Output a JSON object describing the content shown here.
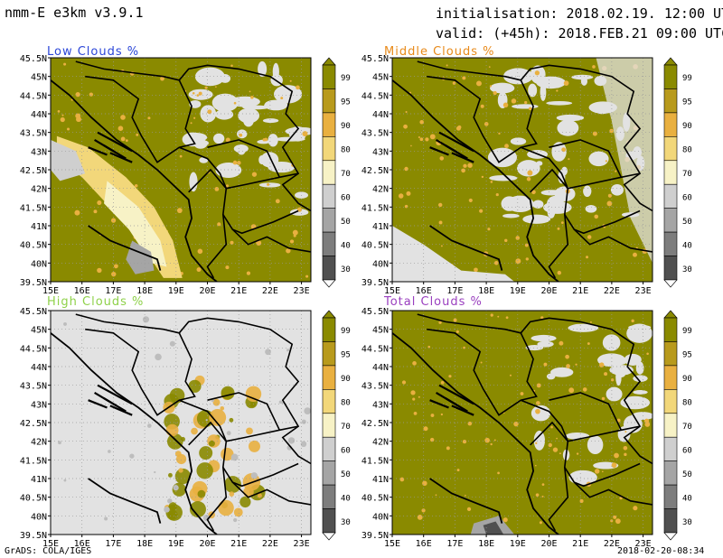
{
  "header": {
    "model": "nmm-E e3km v3.9.1",
    "init": "initialisation: 2018.02.19. 12:00 UTC",
    "valid": "valid: (+45h): 2018.FEB.21 09:00 UTC"
  },
  "footer": {
    "left": "GrADS: COLA/IGES",
    "right": "2018-02-20-08:34"
  },
  "colors": {
    "olive": "#8a8a00",
    "light_gray": "#e2e2e2",
    "orange": "#e9b040"
  },
  "axes": {
    "lat_ticks": [
      "45.5N",
      "45N",
      "44.5N",
      "44N",
      "43.5N",
      "43N",
      "42.5N",
      "42N",
      "41.5N",
      "41N",
      "40.5N",
      "40N",
      "39.5N"
    ],
    "lon_ticks": [
      "15E",
      "16E",
      "17E",
      "18E",
      "19E",
      "20E",
      "21E",
      "22E",
      "23E"
    ]
  },
  "colorbar": {
    "labels": [
      "99",
      "95",
      "90",
      "80",
      "70",
      "60",
      "50",
      "40",
      "30"
    ],
    "colors": [
      "#8a8a00",
      "#b89a1c",
      "#e9b040",
      "#f2d77a",
      "#f7f2c6",
      "#cfcfcf",
      "#a5a5a5",
      "#7d7d7d",
      "#505050"
    ]
  },
  "panels": [
    {
      "title": "Low Clouds %",
      "title_color": "#2a45d8"
    },
    {
      "title": "Middle Clouds %",
      "title_color": "#e88a1a"
    },
    {
      "title": "High Clouds %",
      "title_color": "#8fd14a"
    },
    {
      "title": "Total Clouds %",
      "title_color": "#9a3fbf"
    }
  ]
}
